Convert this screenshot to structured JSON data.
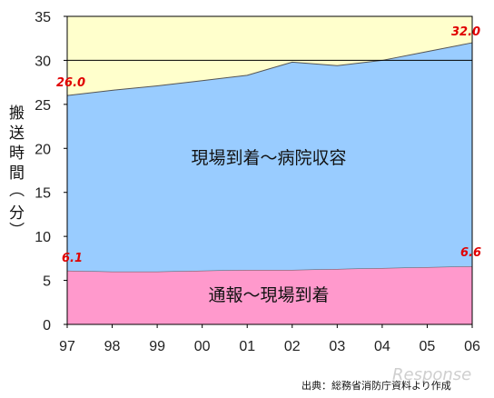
{
  "chart_data": {
    "type": "area",
    "stacked": true,
    "x": [
      "97",
      "98",
      "99",
      "00",
      "01",
      "02",
      "03",
      "04",
      "05",
      "06"
    ],
    "series": [
      {
        "name": "通報〜現場到着",
        "values": [
          6.1,
          6.0,
          6.0,
          6.1,
          6.2,
          6.2,
          6.3,
          6.4,
          6.5,
          6.6
        ],
        "color": "#ff99cc"
      },
      {
        "name": "現場到着〜病院収容",
        "values": [
          19.9,
          20.6,
          21.1,
          21.6,
          22.1,
          23.6,
          23.1,
          23.6,
          24.5,
          25.4
        ],
        "color": "#99ccff"
      }
    ],
    "totals": [
      26.0,
      26.6,
      27.1,
      27.7,
      28.3,
      29.8,
      29.4,
      30.0,
      31.0,
      32.0
    ],
    "background_color": "#ffffcc",
    "ylim": [
      0,
      35
    ],
    "yticks": [
      "0",
      "5",
      "10",
      "15",
      "20",
      "25",
      "30",
      "35"
    ],
    "reference_line": 30,
    "ylabel_chars": [
      "搬",
      "送",
      "時",
      "間",
      "（",
      "分",
      "）"
    ],
    "data_labels": {
      "first_total": "26.0",
      "last_total": "32.0",
      "first_bottom": "6.1",
      "last_bottom": "6.6"
    },
    "series_labels": {
      "top": "現場到着〜病院収容",
      "bottom": "通報〜現場到着"
    },
    "source": "出典：総務省消防庁資料より作成",
    "watermark": "Response"
  }
}
